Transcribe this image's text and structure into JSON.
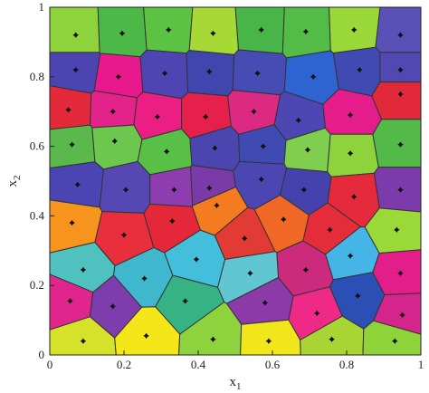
{
  "chart_data": {
    "type": "voronoi",
    "xlim": [
      0,
      1
    ],
    "ylim": [
      0,
      1
    ],
    "xticks": [
      "0",
      "0.2",
      "0.4",
      "0.6",
      "0.8",
      "1"
    ],
    "yticks": [
      "0",
      "0.2",
      "0.4",
      "0.6",
      "0.8",
      "1"
    ],
    "xlabel": {
      "base": "x",
      "sub": "1"
    },
    "ylabel": {
      "base": "x",
      "sub": "2"
    },
    "grid": false,
    "legend": "none",
    "sites": [
      {
        "x": 0.07,
        "y": 0.92,
        "color": "#8ed33b"
      },
      {
        "x": 0.195,
        "y": 0.925,
        "color": "#4cb848"
      },
      {
        "x": 0.32,
        "y": 0.935,
        "color": "#5cc244"
      },
      {
        "x": 0.44,
        "y": 0.925,
        "color": "#a6d935"
      },
      {
        "x": 0.57,
        "y": 0.935,
        "color": "#48b548"
      },
      {
        "x": 0.69,
        "y": 0.93,
        "color": "#53bc46"
      },
      {
        "x": 0.82,
        "y": 0.935,
        "color": "#9ad83a"
      },
      {
        "x": 0.945,
        "y": 0.92,
        "color": "#5a51b6"
      },
      {
        "x": 0.07,
        "y": 0.82,
        "color": "#4c44b0"
      },
      {
        "x": 0.185,
        "y": 0.8,
        "color": "#e8198c"
      },
      {
        "x": 0.31,
        "y": 0.81,
        "color": "#4e45b3"
      },
      {
        "x": 0.43,
        "y": 0.815,
        "color": "#3f46ad"
      },
      {
        "x": 0.56,
        "y": 0.81,
        "color": "#474bb4"
      },
      {
        "x": 0.71,
        "y": 0.8,
        "color": "#2e63d2"
      },
      {
        "x": 0.835,
        "y": 0.82,
        "color": "#3f4bb3"
      },
      {
        "x": 0.945,
        "y": 0.82,
        "color": "#5148b1"
      },
      {
        "x": 0.05,
        "y": 0.705,
        "color": "#e42a3a"
      },
      {
        "x": 0.17,
        "y": 0.7,
        "color": "#e3238a"
      },
      {
        "x": 0.29,
        "y": 0.685,
        "color": "#eb1e84"
      },
      {
        "x": 0.42,
        "y": 0.685,
        "color": "#e5214b"
      },
      {
        "x": 0.55,
        "y": 0.7,
        "color": "#dc2a82"
      },
      {
        "x": 0.67,
        "y": 0.675,
        "color": "#4c47b2"
      },
      {
        "x": 0.81,
        "y": 0.69,
        "color": "#e51d8a"
      },
      {
        "x": 0.945,
        "y": 0.75,
        "color": "#e2293a"
      },
      {
        "x": 0.06,
        "y": 0.605,
        "color": "#5ab94a"
      },
      {
        "x": 0.175,
        "y": 0.615,
        "color": "#6dc64e"
      },
      {
        "x": 0.315,
        "y": 0.585,
        "color": "#58c047"
      },
      {
        "x": 0.445,
        "y": 0.595,
        "color": "#4b46af"
      },
      {
        "x": 0.575,
        "y": 0.6,
        "color": "#3f4bb3"
      },
      {
        "x": 0.695,
        "y": 0.59,
        "color": "#80ce4f"
      },
      {
        "x": 0.81,
        "y": 0.58,
        "color": "#8fd33c"
      },
      {
        "x": 0.945,
        "y": 0.605,
        "color": "#53b949"
      },
      {
        "x": 0.075,
        "y": 0.49,
        "color": "#4a45b2"
      },
      {
        "x": 0.205,
        "y": 0.475,
        "color": "#5548b3"
      },
      {
        "x": 0.335,
        "y": 0.475,
        "color": "#8e3db1"
      },
      {
        "x": 0.43,
        "y": 0.48,
        "color": "#7a3ba9"
      },
      {
        "x": 0.57,
        "y": 0.505,
        "color": "#4b46b2"
      },
      {
        "x": 0.685,
        "y": 0.475,
        "color": "#4542ae"
      },
      {
        "x": 0.82,
        "y": 0.455,
        "color": "#e52a3c"
      },
      {
        "x": 0.945,
        "y": 0.475,
        "color": "#7b3bab"
      },
      {
        "x": 0.06,
        "y": 0.38,
        "color": "#f7941d"
      },
      {
        "x": 0.2,
        "y": 0.345,
        "color": "#e92e3c"
      },
      {
        "x": 0.33,
        "y": 0.385,
        "color": "#e5273a"
      },
      {
        "x": 0.45,
        "y": 0.43,
        "color": "#f47b20"
      },
      {
        "x": 0.525,
        "y": 0.335,
        "color": "#e23a35"
      },
      {
        "x": 0.63,
        "y": 0.39,
        "color": "#f06726"
      },
      {
        "x": 0.755,
        "y": 0.36,
        "color": "#e42c3b"
      },
      {
        "x": 0.935,
        "y": 0.36,
        "color": "#9ad938"
      },
      {
        "x": 0.09,
        "y": 0.245,
        "color": "#4fc2bf"
      },
      {
        "x": 0.255,
        "y": 0.22,
        "color": "#3fb8ce"
      },
      {
        "x": 0.395,
        "y": 0.275,
        "color": "#43bfdc"
      },
      {
        "x": 0.54,
        "y": 0.235,
        "color": "#5fc6d2"
      },
      {
        "x": 0.69,
        "y": 0.245,
        "color": "#cc2b7d"
      },
      {
        "x": 0.81,
        "y": 0.285,
        "color": "#45b4e6"
      },
      {
        "x": 0.945,
        "y": 0.235,
        "color": "#e31d8a"
      },
      {
        "x": 0.055,
        "y": 0.155,
        "color": "#e0258c"
      },
      {
        "x": 0.17,
        "y": 0.14,
        "color": "#7e3dac"
      },
      {
        "x": 0.365,
        "y": 0.155,
        "color": "#36b384"
      },
      {
        "x": 0.58,
        "y": 0.15,
        "color": "#8c3aa8"
      },
      {
        "x": 0.72,
        "y": 0.12,
        "color": "#ee2a86"
      },
      {
        "x": 0.83,
        "y": 0.17,
        "color": "#2c4fb6"
      },
      {
        "x": 0.95,
        "y": 0.115,
        "color": "#d3258c"
      },
      {
        "x": 0.09,
        "y": 0.04,
        "color": "#d6e12a"
      },
      {
        "x": 0.26,
        "y": 0.055,
        "color": "#f5e61a"
      },
      {
        "x": 0.44,
        "y": 0.045,
        "color": "#8ed23d"
      },
      {
        "x": 0.59,
        "y": 0.04,
        "color": "#f1e61a"
      },
      {
        "x": 0.76,
        "y": 0.045,
        "color": "#a8d534"
      },
      {
        "x": 0.93,
        "y": 0.04,
        "color": "#8fd33b"
      }
    ]
  }
}
